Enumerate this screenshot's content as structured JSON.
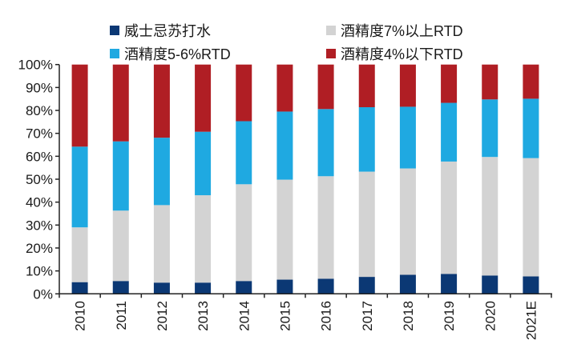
{
  "chart_data": {
    "type": "bar",
    "stacked": true,
    "percent": true,
    "categories": [
      "2010",
      "2011",
      "2012",
      "2013",
      "2014",
      "2015",
      "2016",
      "2017",
      "2018",
      "2019",
      "2020",
      "2021E"
    ],
    "series": [
      {
        "name": "威士忌苏打水",
        "color": "#0b3874",
        "values": [
          5.1,
          5.6,
          4.9,
          4.9,
          5.6,
          6.2,
          6.6,
          7.4,
          8.3,
          8.7,
          8.0,
          7.6
        ]
      },
      {
        "name": "酒精度7%以上RTD",
        "color": "#d3d3d3",
        "values": [
          23.9,
          30.7,
          33.8,
          38.1,
          42.2,
          43.6,
          44.7,
          45.9,
          46.4,
          49.0,
          51.7,
          51.6
        ]
      },
      {
        "name": "酒精度5-6%RTD",
        "color": "#1fa9e1",
        "values": [
          35.2,
          30.2,
          29.4,
          27.7,
          27.5,
          29.7,
          29.3,
          28.1,
          26.9,
          25.6,
          25.1,
          25.9
        ]
      },
      {
        "name": "酒精度4%以下RTD",
        "color": "#b01e24",
        "values": [
          35.8,
          33.5,
          31.9,
          29.3,
          24.7,
          20.5,
          19.4,
          18.6,
          18.4,
          16.7,
          15.2,
          14.9
        ]
      }
    ],
    "ylim": [
      0,
      100
    ],
    "yticks": [
      "0%",
      "10%",
      "20%",
      "30%",
      "40%",
      "50%",
      "60%",
      "70%",
      "80%",
      "90%",
      "100%"
    ],
    "grid": false,
    "legend_position": "top"
  }
}
